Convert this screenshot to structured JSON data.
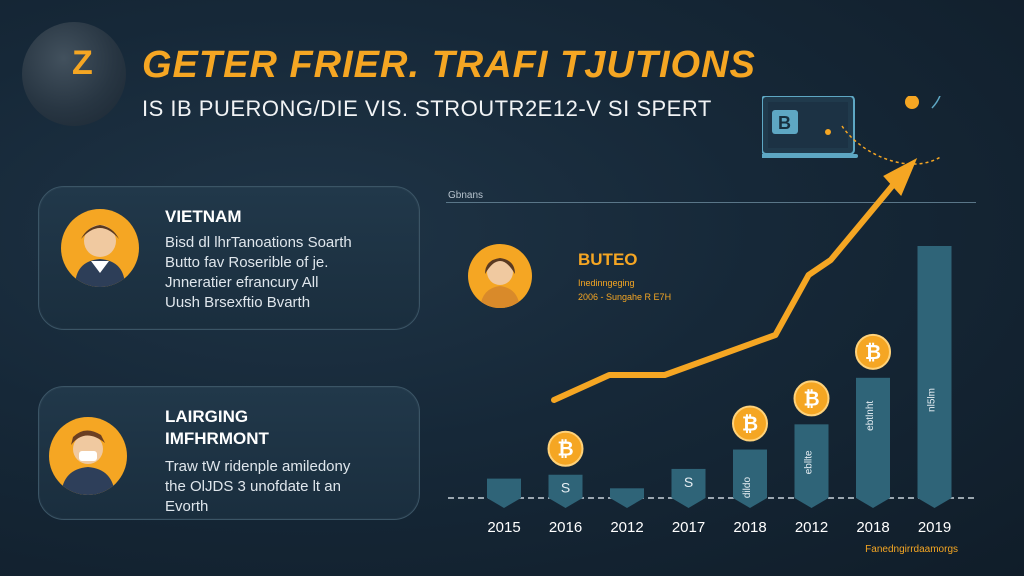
{
  "header": {
    "globe_letter": "Z",
    "title": "GETER FRIER. TRAFI TJUTIONS",
    "subtitle": "IS IB PUERONG/DIE  VIS. STROUTR2E12-V SI SPERT"
  },
  "graphic": {
    "laptop_letter": "B"
  },
  "cards": [
    {
      "title": "VIETNAM",
      "lines": [
        "Bisd dl lhrTanoations Soarth",
        "Butto fav Roserible of je.",
        "Jnneratier efrancury All",
        "Uush Brsexftio Bvarth"
      ]
    },
    {
      "title_lines": [
        "LAIRGING",
        "IMFHRMONT"
      ],
      "lines": [
        "Traw tW ridenple amiledony",
        "the OlJDS 3 unofdate lt an",
        "Evorth"
      ]
    }
  ],
  "chart_header": "Gbnans",
  "butto": {
    "title": "BUTEO",
    "lines": [
      "Inedinngeging",
      "2006 - Sungahe R E7H"
    ]
  },
  "colors": {
    "accent": "#f5a623",
    "bar": "#2f6478",
    "background": "#162838"
  },
  "chart_data": {
    "type": "bar",
    "categories": [
      "2015",
      "2016",
      "2012",
      "2017",
      "2018",
      "2012",
      "2018",
      "2019"
    ],
    "values": [
      1.0,
      1.2,
      0.5,
      1.5,
      2.5,
      3.8,
      6.2,
      13.0
    ],
    "bar_labels": [
      "",
      "S",
      "",
      "S",
      "dildo",
      "ebllte",
      "ebtlnht",
      "nl5lm"
    ],
    "coin_markers": [
      false,
      true,
      false,
      false,
      true,
      true,
      true,
      false
    ],
    "trend_line": {
      "x": [
        1.0,
        2.0,
        3.0,
        4.0,
        5.0,
        5.6,
        6.0,
        7.2
      ],
      "y": [
        2.0,
        2.5,
        2.5,
        2.9,
        3.3,
        4.5,
        4.8,
        6.4
      ]
    },
    "ylim": [
      0,
      13
    ],
    "grid": false,
    "legend": "none"
  },
  "footnote": "Fanedngirrdaamorgs"
}
